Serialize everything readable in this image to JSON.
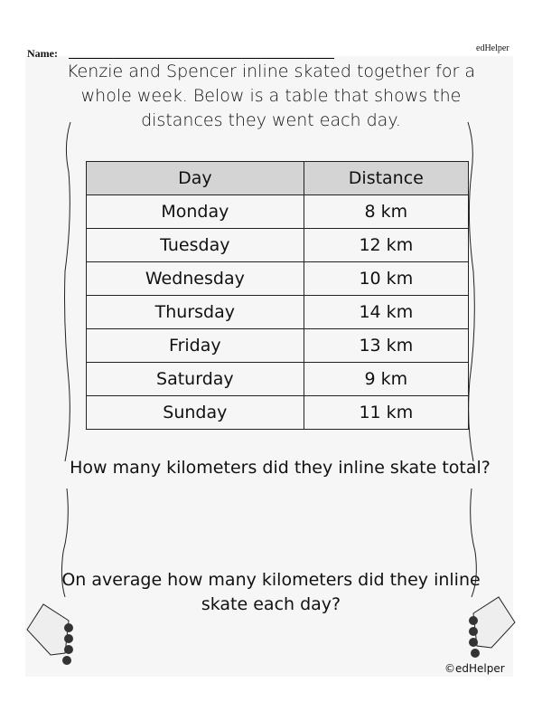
{
  "header": {
    "name_label": "Name:",
    "brand": "edHelper"
  },
  "intro": "Kenzie and Spencer inline skated together for a whole week. Below is a table that shows the distances they went each day.",
  "table": {
    "headers": [
      "Day",
      "Distance"
    ],
    "rows": [
      [
        "Monday",
        "8 km"
      ],
      [
        "Tuesday",
        "12 km"
      ],
      [
        "Wednesday",
        "10 km"
      ],
      [
        "Thursday",
        "14 km"
      ],
      [
        "Friday",
        "13 km"
      ],
      [
        "Saturday",
        "9 km"
      ],
      [
        "Sunday",
        "11 km"
      ]
    ]
  },
  "question1": "How many kilometers did they inline skate total?",
  "question2": "On average how many kilometers did they inline skate each day?",
  "copyright": "©edHelper",
  "icons": [
    "inline-skate-icon",
    "inline-skate-icon"
  ]
}
